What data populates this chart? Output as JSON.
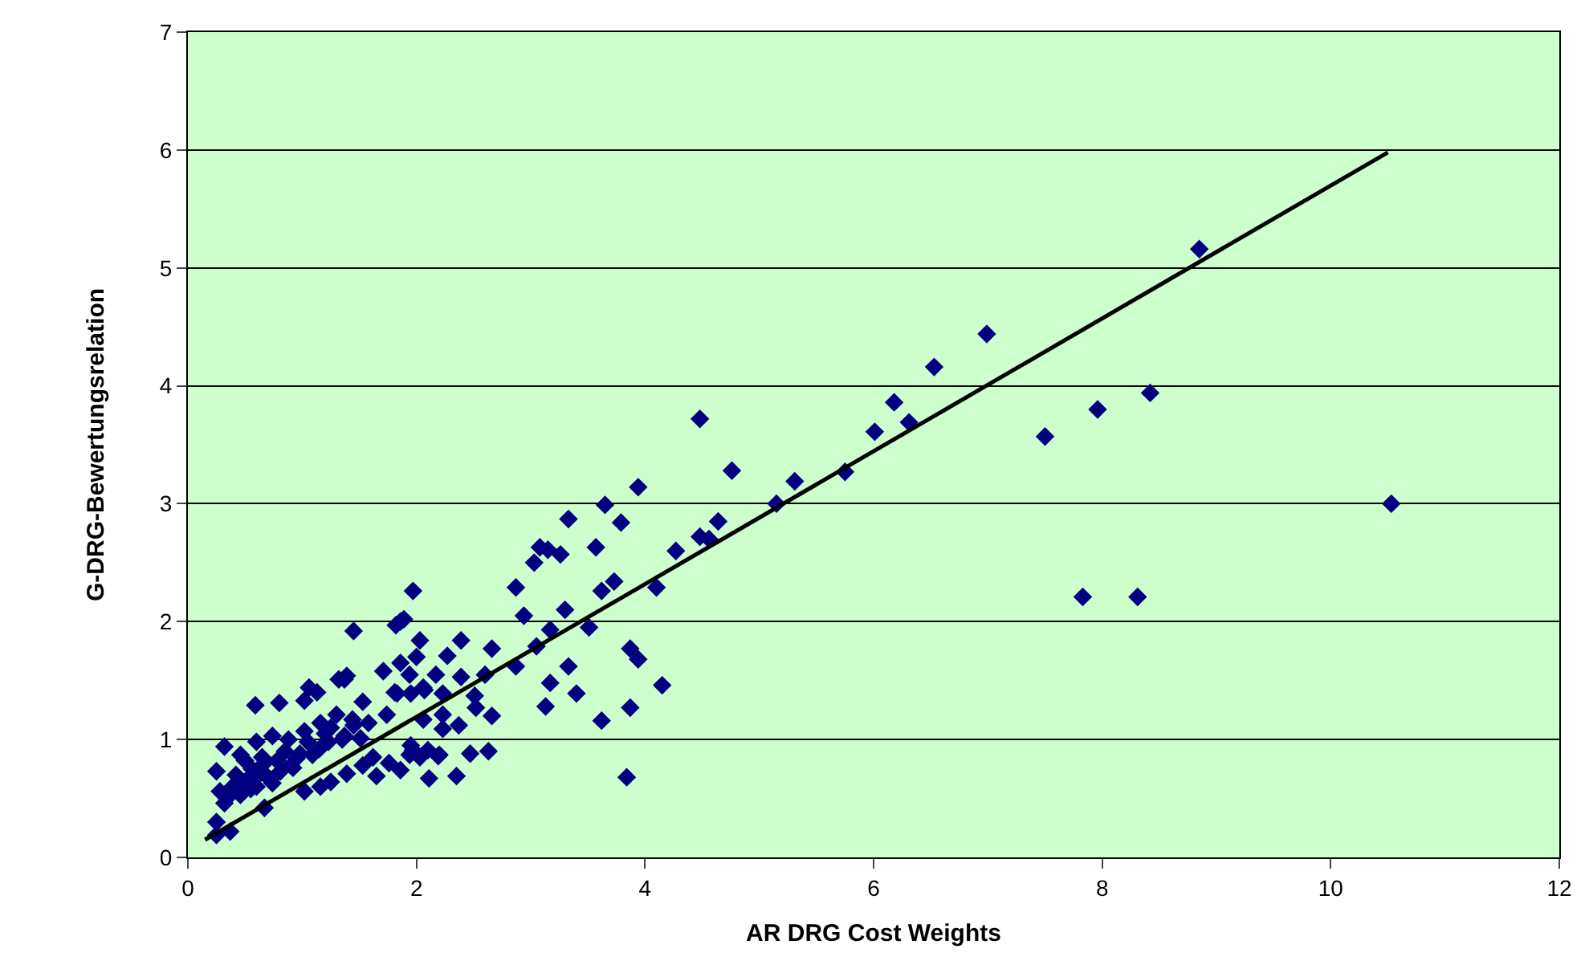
{
  "chart_data": {
    "type": "scatter",
    "xlabel": "AR DRG Cost Weights",
    "ylabel": "G-DRG-Bewertungsrelation",
    "xlim": [
      0,
      12
    ],
    "xticks": [
      0,
      2,
      4,
      6,
      8,
      10,
      12
    ],
    "ylim": [
      0,
      7
    ],
    "yticks": [
      0,
      1,
      2,
      3,
      4,
      5,
      6,
      7
    ],
    "grid": "y",
    "legend": false,
    "marker": "diamond",
    "series": [
      {
        "color": "#000080",
        "x": [
          8.85,
          6.99,
          6.53,
          6.18,
          6.31,
          6.01,
          4.48,
          4.76,
          5.31,
          5.75,
          5.15,
          4.64,
          4.48,
          4.56,
          4.27,
          7.5,
          7.96,
          8.42,
          7.83,
          8.31,
          10.53,
          3.94,
          3.65,
          3.33,
          3.79,
          3.08,
          3.15,
          3.26,
          3.03,
          3.57,
          4.1,
          3.73,
          3.62,
          2.87,
          1.97,
          2.94,
          3.3,
          3.51,
          3.17,
          3.05,
          1.45,
          1.86,
          1.82,
          2.03,
          2.39,
          2.66,
          2.27,
          2.0,
          1.86,
          1.37,
          1.71,
          1.94,
          2.17,
          2.39,
          2.6,
          2.87,
          3.87,
          3.94,
          3.33,
          3.17,
          3.4,
          4.15,
          3.13,
          3.62,
          3.87,
          3.84,
          2.66,
          2.52,
          2.37,
          2.23,
          1.83,
          2.51,
          2.23,
          2.07,
          2.63,
          2.47,
          2.35,
          2.11,
          2.2,
          2.03,
          1.86,
          1.65,
          1.95,
          1.89,
          0.59,
          0.8,
          1.02,
          1.06,
          1.13,
          1.39,
          1.32,
          1.53,
          1.74,
          1.81,
          1.95,
          2.06,
          2.06,
          2.23,
          2.1,
          2.19,
          1.97,
          1.94,
          1.76,
          1.62,
          1.53,
          1.39,
          1.25,
          1.16,
          1.02,
          0.67,
          0.37,
          0.25,
          0.25,
          0.28,
          0.25,
          0.32,
          0.39,
          0.46,
          0.53,
          0.6,
          0.67,
          0.74,
          0.81,
          0.88,
          0.95,
          1.02,
          1.09,
          1.16,
          1.23,
          1.3,
          1.37,
          1.44,
          1.51,
          1.58,
          0.46,
          0.6,
          0.74,
          0.32,
          0.42,
          0.5,
          0.56,
          0.65,
          0.7,
          0.85,
          0.9,
          1.2,
          0.36,
          0.44,
          0.55,
          0.64,
          0.72,
          0.78,
          0.92,
          0.98,
          1.05,
          1.15,
          1.25,
          1.35,
          1.45
        ],
        "values": [
          5.16,
          4.44,
          4.16,
          3.86,
          3.69,
          3.61,
          3.72,
          3.28,
          3.19,
          3.27,
          3.0,
          2.85,
          2.72,
          2.7,
          2.6,
          3.57,
          3.8,
          3.94,
          2.21,
          2.21,
          3.0,
          3.14,
          2.99,
          2.87,
          2.84,
          2.63,
          2.61,
          2.57,
          2.5,
          2.63,
          2.29,
          2.34,
          2.26,
          2.29,
          2.26,
          2.05,
          2.1,
          1.95,
          1.93,
          1.79,
          1.92,
          2.0,
          1.97,
          1.84,
          1.84,
          1.77,
          1.71,
          1.7,
          1.65,
          1.51,
          1.58,
          1.55,
          1.55,
          1.53,
          1.55,
          1.62,
          1.77,
          1.68,
          1.62,
          1.48,
          1.39,
          1.46,
          1.28,
          1.16,
          1.27,
          0.68,
          1.2,
          1.27,
          1.12,
          1.09,
          1.39,
          1.37,
          1.39,
          1.42,
          0.9,
          0.88,
          0.69,
          0.67,
          0.87,
          0.85,
          0.74,
          0.69,
          0.95,
          2.02,
          1.29,
          1.31,
          1.33,
          1.44,
          1.4,
          1.54,
          1.51,
          1.32,
          1.21,
          1.4,
          1.39,
          1.44,
          1.17,
          1.21,
          0.91,
          0.86,
          0.91,
          0.87,
          0.8,
          0.85,
          0.78,
          0.71,
          0.64,
          0.6,
          0.56,
          0.42,
          0.22,
          0.19,
          0.3,
          0.56,
          0.73,
          0.94,
          0.6,
          0.87,
          0.67,
          0.98,
          0.8,
          1.03,
          0.73,
          1.0,
          0.84,
          1.07,
          0.87,
          1.14,
          0.98,
          1.21,
          1.03,
          1.17,
          1.01,
          1.14,
          0.53,
          0.6,
          0.63,
          0.46,
          0.7,
          0.82,
          0.75,
          0.85,
          0.68,
          0.9,
          0.78,
          1.05,
          0.52,
          0.62,
          0.58,
          0.72,
          0.66,
          0.82,
          0.76,
          0.88,
          0.98,
          0.92,
          1.1,
          1.0,
          1.12
        ]
      },
      {
        "type": "line",
        "color": "#000000",
        "marker": "none",
        "line_style": "solid",
        "x": [
          0.15,
          10.5
        ],
        "values": [
          0.15,
          5.98
        ]
      }
    ]
  }
}
